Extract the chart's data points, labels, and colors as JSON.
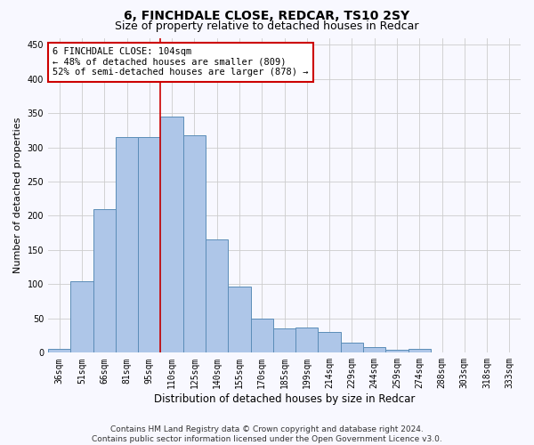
{
  "title": "6, FINCHDALE CLOSE, REDCAR, TS10 2SY",
  "subtitle": "Size of property relative to detached houses in Redcar",
  "xlabel": "Distribution of detached houses by size in Redcar",
  "ylabel": "Number of detached properties",
  "categories": [
    "36sqm",
    "51sqm",
    "66sqm",
    "81sqm",
    "95sqm",
    "110sqm",
    "125sqm",
    "140sqm",
    "155sqm",
    "170sqm",
    "185sqm",
    "199sqm",
    "214sqm",
    "229sqm",
    "244sqm",
    "259sqm",
    "274sqm",
    "288sqm",
    "303sqm",
    "318sqm",
    "333sqm"
  ],
  "values": [
    5,
    105,
    210,
    315,
    315,
    345,
    318,
    165,
    97,
    50,
    35,
    37,
    30,
    15,
    8,
    4,
    5,
    1,
    1,
    1,
    1
  ],
  "bar_color": "#aec6e8",
  "bar_edge_color": "#5b8db8",
  "property_line_color": "#cc0000",
  "annotation_line1": "6 FINCHDALE CLOSE: 104sqm",
  "annotation_line2": "← 48% of detached houses are smaller (809)",
  "annotation_line3": "52% of semi-detached houses are larger (878) →",
  "annotation_box_color": "#ffffff",
  "annotation_box_edge_color": "#cc0000",
  "ylim": [
    0,
    460
  ],
  "yticks": [
    0,
    50,
    100,
    150,
    200,
    250,
    300,
    350,
    400,
    450
  ],
  "grid_color": "#cccccc",
  "background_color": "#f8f8ff",
  "footer_line1": "Contains HM Land Registry data © Crown copyright and database right 2024.",
  "footer_line2": "Contains public sector information licensed under the Open Government Licence v3.0.",
  "title_fontsize": 10,
  "subtitle_fontsize": 9,
  "xlabel_fontsize": 8.5,
  "ylabel_fontsize": 8,
  "tick_fontsize": 7,
  "annotation_fontsize": 7.5,
  "footer_fontsize": 6.5
}
